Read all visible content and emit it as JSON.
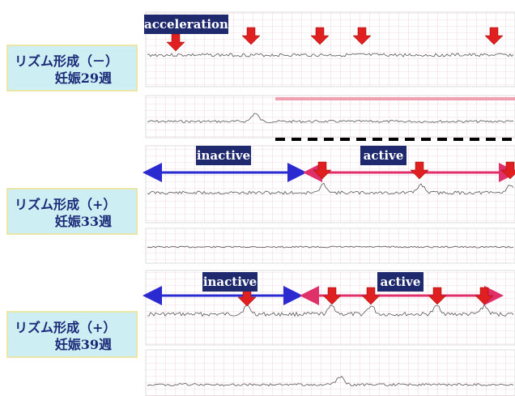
{
  "panels": [
    {
      "rhythm": "リズム形成（－）",
      "gestation": "妊娠29週",
      "tags": [
        "acceleration"
      ]
    },
    {
      "rhythm": "リズム形成（+）",
      "gestation": "妊娠33週",
      "tags": [
        "inactive",
        "active"
      ]
    },
    {
      "rhythm": "リズム形成（+）",
      "gestation": "妊娠39週",
      "tags": [
        "inactive",
        "active"
      ]
    }
  ]
}
